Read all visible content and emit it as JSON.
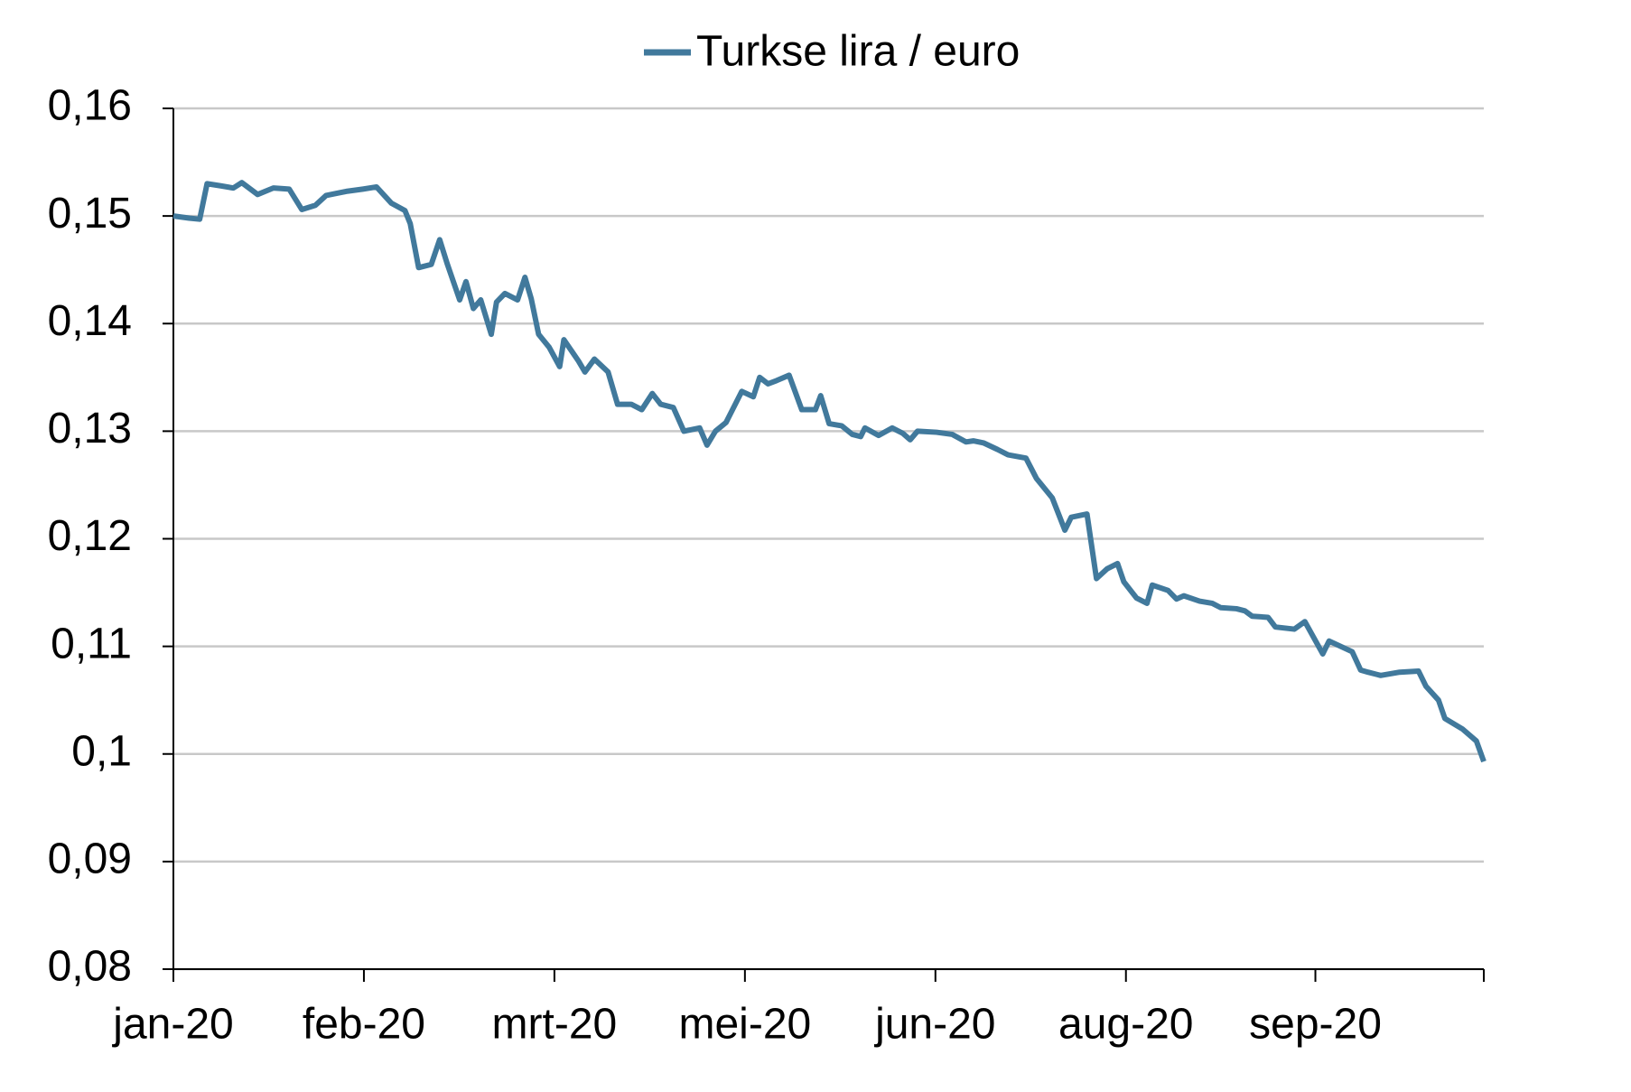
{
  "chart_data": {
    "type": "line",
    "series": [
      {
        "name": "Turkse lira / euro",
        "color": "#41799c",
        "x": [
          0,
          15,
          25,
          32,
          45,
          57,
          65,
          80,
          95,
          110,
          122,
          135,
          145,
          155,
          165,
          180,
          193,
          207,
          220,
          225,
          233,
          245,
          253,
          260,
          272,
          278,
          285,
          292,
          302,
          307,
          315,
          327,
          334,
          340,
          347,
          357,
          367,
          371,
          385,
          391,
          400,
          413,
          422,
          435,
          445,
          455,
          463,
          475,
          485,
          500,
          507,
          515,
          525,
          540,
          551,
          557,
          565,
          573,
          585,
          597,
          610,
          615,
          623,
          635,
          645,
          653,
          657,
          670,
          683,
          693,
          700,
          707,
          725,
          740,
          753,
          760,
          770,
          783,
          793,
          810,
          820,
          835,
          847,
          853,
          868,
          877,
          887,
          897,
          903,
          915,
          925,
          930,
          945,
          953,
          960,
          975,
          987,
          995,
          1010,
          1018,
          1025,
          1040,
          1047,
          1065,
          1075,
          1092,
          1098,
          1120,
          1128,
          1135,
          1147,
          1165,
          1183,
          1190,
          1202,
          1208,
          1225,
          1238,
          1245
        ],
        "values": [
          0.15,
          0.1498,
          0.1497,
          0.153,
          0.1528,
          0.1526,
          0.1531,
          0.152,
          0.1526,
          0.1525,
          0.1506,
          0.151,
          0.1519,
          0.1521,
          0.1523,
          0.1525,
          0.1527,
          0.1512,
          0.1505,
          0.1493,
          0.1452,
          0.1455,
          0.1478,
          0.1456,
          0.1422,
          0.1439,
          0.1414,
          0.1422,
          0.139,
          0.142,
          0.1428,
          0.1422,
          0.1443,
          0.1423,
          0.139,
          0.1378,
          0.136,
          0.1385,
          0.1365,
          0.1355,
          0.1367,
          0.1355,
          0.1325,
          0.1325,
          0.132,
          0.1335,
          0.1325,
          0.1322,
          0.13,
          0.1303,
          0.1287,
          0.13,
          0.1308,
          0.1337,
          0.1332,
          0.135,
          0.1344,
          0.1347,
          0.1352,
          0.132,
          0.132,
          0.1333,
          0.1307,
          0.1305,
          0.1297,
          0.1295,
          0.1303,
          0.1296,
          0.1303,
          0.1298,
          0.1292,
          0.13,
          0.1299,
          0.1297,
          0.129,
          0.1291,
          0.1289,
          0.1283,
          0.1278,
          0.1275,
          0.1256,
          0.1238,
          0.1208,
          0.122,
          0.1223,
          0.1163,
          0.1172,
          0.1177,
          0.116,
          0.1145,
          0.114,
          0.1157,
          0.1152,
          0.1144,
          0.1147,
          0.1142,
          0.114,
          0.1136,
          0.1135,
          0.1133,
          0.1128,
          0.1127,
          0.1118,
          0.1116,
          0.1123,
          0.1093,
          0.1105,
          0.1095,
          0.1078,
          0.1076,
          0.1073,
          0.1076,
          0.1077,
          0.1063,
          0.105,
          0.1033,
          0.1023,
          0.1012,
          0.0993
        ]
      }
    ],
    "xlim": [
      0,
      1245
    ],
    "xticks": [
      {
        "value": 0,
        "label": "jan-20"
      },
      {
        "value": 181,
        "label": "feb-20"
      },
      {
        "value": 362,
        "label": "mrt-20"
      },
      {
        "value": 543,
        "label": "mei-20"
      },
      {
        "value": 724,
        "label": "jun-20"
      },
      {
        "value": 905,
        "label": "aug-20"
      },
      {
        "value": 1085,
        "label": "sep-20"
      }
    ],
    "ylim": [
      0.08,
      0.16
    ],
    "yticks": [
      {
        "value": 0.08,
        "label": "0,08"
      },
      {
        "value": 0.09,
        "label": "0,09"
      },
      {
        "value": 0.1,
        "label": "0,1"
      },
      {
        "value": 0.11,
        "label": "0,11"
      },
      {
        "value": 0.12,
        "label": "0,12"
      },
      {
        "value": 0.13,
        "label": "0,13"
      },
      {
        "value": 0.14,
        "label": "0,14"
      },
      {
        "value": 0.15,
        "label": "0,15"
      },
      {
        "value": 0.16,
        "label": "0,16"
      }
    ],
    "grid": true
  }
}
